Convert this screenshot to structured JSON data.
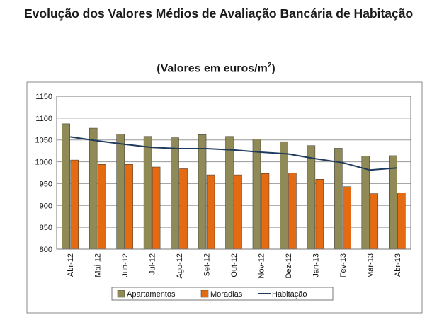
{
  "header": {
    "title": "Evolução dos Valores Médios de Avaliação Bancária de Habitação"
  },
  "chart_data": {
    "type": "bar",
    "subtitle_main": "(Valores em euros/m",
    "subtitle_sup": "2",
    "subtitle_end": ")",
    "categories": [
      "Abr-12",
      "Mai-12",
      "Jun-12",
      "Jul-12",
      "Ago-12",
      "Set-12",
      "Out-12",
      "Nov-12",
      "Dez-12",
      "Jan-13",
      "Fev-13",
      "Mar-13",
      "Abr-13"
    ],
    "series": [
      {
        "name": "Apartamentos",
        "kind": "bar",
        "color": "#8f8a56",
        "values": [
          1087,
          1077,
          1063,
          1058,
          1055,
          1062,
          1058,
          1052,
          1046,
          1037,
          1031,
          1013,
          1014
        ]
      },
      {
        "name": "Moradias",
        "kind": "bar",
        "color": "#e56b12",
        "values": [
          1004,
          994,
          994,
          988,
          984,
          970,
          970,
          973,
          974,
          960,
          943,
          927,
          929
        ]
      },
      {
        "name": "Habitação",
        "kind": "line",
        "color": "#1f3a5c",
        "values": [
          1057,
          1048,
          1040,
          1033,
          1030,
          1030,
          1027,
          1022,
          1018,
          1007,
          998,
          981,
          986
        ]
      }
    ],
    "yticks": [
      800,
      850,
      900,
      950,
      1000,
      1050,
      1100,
      1150
    ],
    "ylim": [
      800,
      1150
    ],
    "grid": true,
    "legend": "bottom"
  }
}
